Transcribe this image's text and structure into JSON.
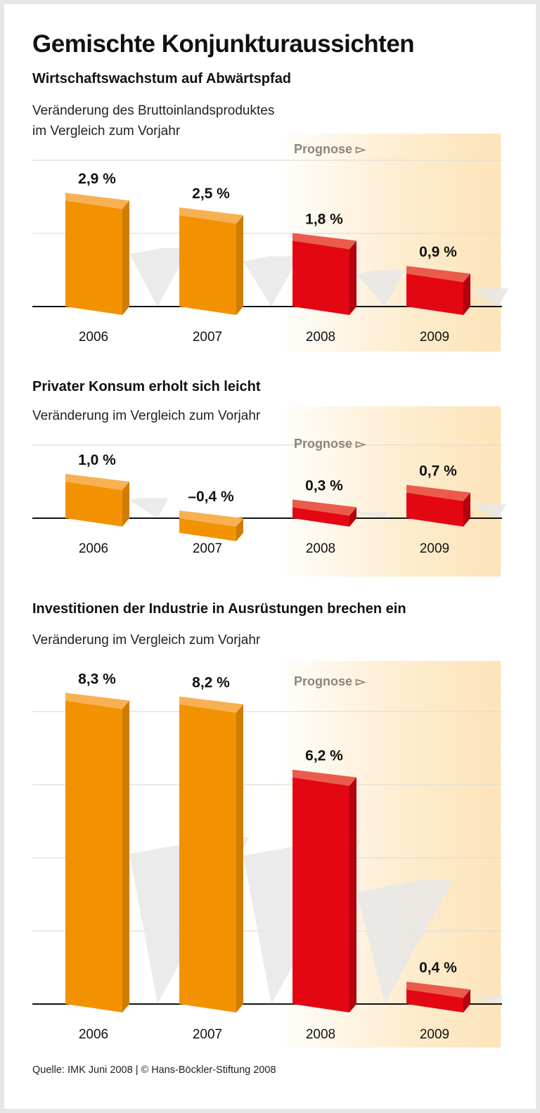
{
  "title": "Gemischte Konjunkturaussichten",
  "source": "Quelle: IMK Juni 2008 | © Hans-Böckler-Stiftung 2008",
  "colors": {
    "actual": "#f39200",
    "forecast": "#e30613",
    "forecast_shading": "#fde7c0",
    "prognose_label": "#8c8579"
  },
  "chart_data": [
    {
      "type": "bar",
      "title": "Wirtschaftswachstum auf Abwärtspfad",
      "subtitle": [
        "Veränderung des Bruttoinlandsproduktes",
        "im Vergleich zum Vorjahr"
      ],
      "forecast_label": "Prognose ▻",
      "categories": [
        "2006",
        "2007",
        "2008",
        "2009"
      ],
      "values": [
        2.9,
        2.5,
        1.8,
        0.9
      ],
      "value_labels": [
        "2,9 %",
        "2,5 %",
        "1,8 %",
        "0,9 %"
      ],
      "forecast": [
        false,
        false,
        true,
        true
      ],
      "unit": "%",
      "ylim": [
        0,
        4
      ],
      "grid": true
    },
    {
      "type": "bar",
      "title": "Privater Konsum erholt sich leicht",
      "subtitle": [
        "Veränderung im Vergleich zum Vorjahr"
      ],
      "forecast_label": "Prognose ▻",
      "categories": [
        "2006",
        "2007",
        "2008",
        "2009"
      ],
      "values": [
        1.0,
        -0.4,
        0.3,
        0.7
      ],
      "value_labels": [
        "1,0 %",
        "–0,4 %",
        "0,3 %",
        "0,7 %"
      ],
      "forecast": [
        false,
        false,
        true,
        true
      ],
      "unit": "%",
      "ylim": [
        -0.6,
        2
      ],
      "grid": true
    },
    {
      "type": "bar",
      "title": "Investitionen der Industrie in Ausrüstungen brechen ein",
      "subtitle": [
        "Veränderung im Vergleich zum Vorjahr"
      ],
      "forecast_label": "Prognose ▻",
      "categories": [
        "2006",
        "2007",
        "2008",
        "2009"
      ],
      "values": [
        8.3,
        8.2,
        6.2,
        0.4
      ],
      "value_labels": [
        "8,3 %",
        "8,2 %",
        "6,2 %",
        "0,4 %"
      ],
      "forecast": [
        false,
        false,
        true,
        true
      ],
      "unit": "%",
      "ylim": [
        0,
        9
      ],
      "grid": true
    }
  ]
}
